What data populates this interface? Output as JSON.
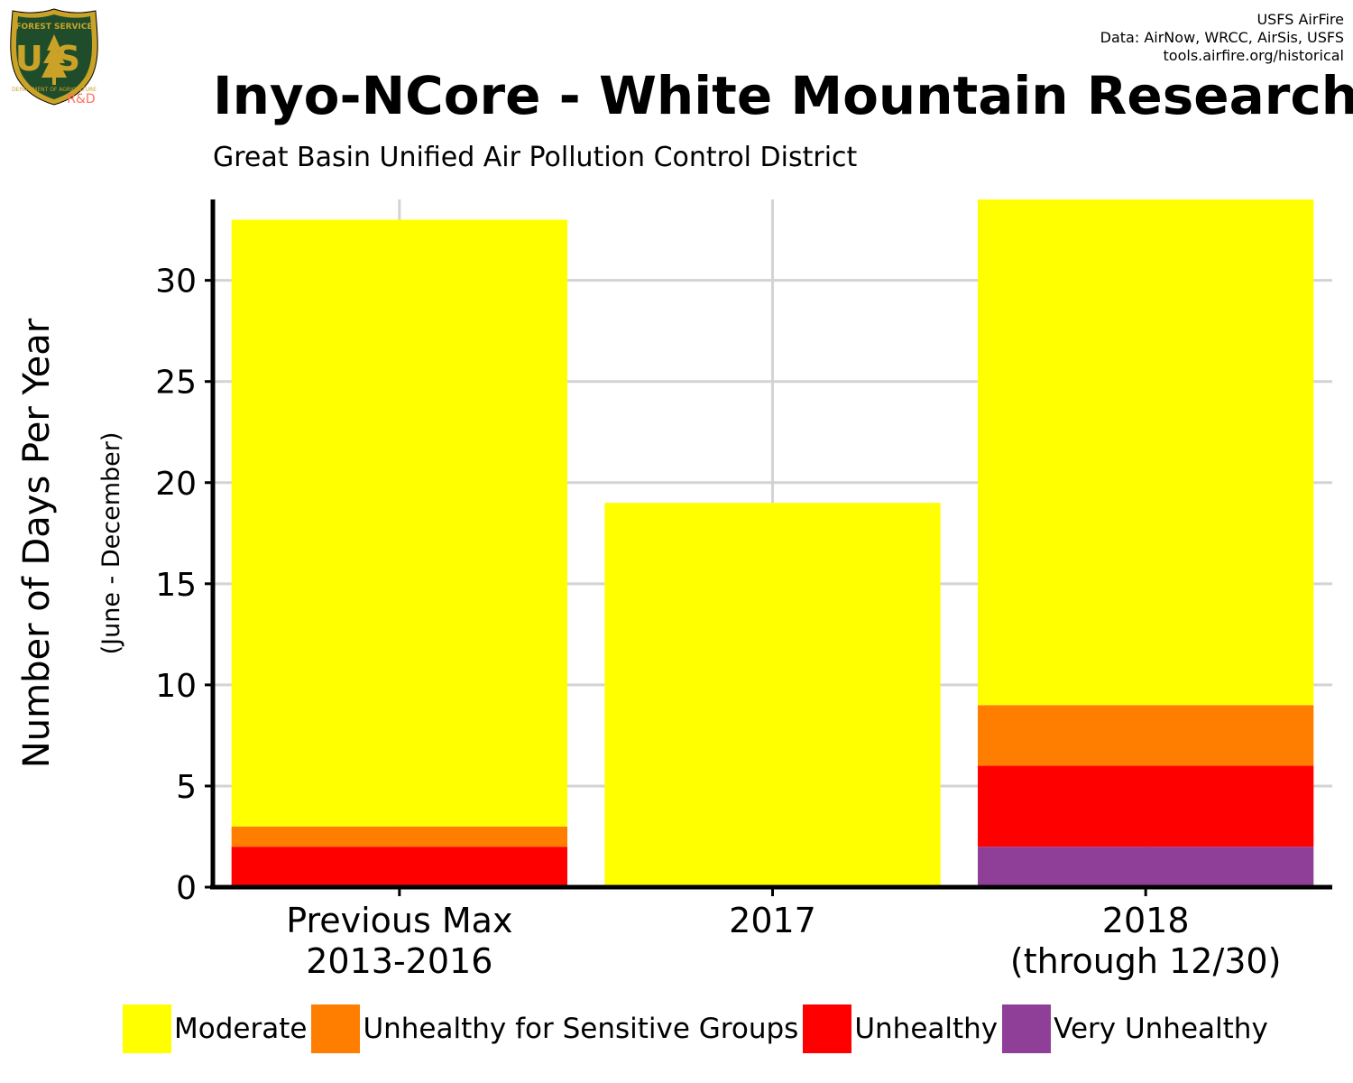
{
  "header": {
    "logo": {
      "text_top": "FOREST SERVICE",
      "text_main": "US",
      "text_bottom": "DEPARTMENT OF AGRICULTURE",
      "badge": "R&D"
    },
    "credits": [
      "USFS AirFire",
      "Data: AirNow, WRCC, AirSis, USFS",
      "tools.airfire.org/historical"
    ],
    "title": "Inyo-NCore - White Mountain Research",
    "subtitle": "Great Basin Unified Air Pollution Control District"
  },
  "chart_data": {
    "type": "bar",
    "stacked": true,
    "categories": [
      [
        "Previous Max",
        "2013-2016"
      ],
      [
        "2017"
      ],
      [
        "2018",
        "(through 12/30)"
      ]
    ],
    "series": [
      {
        "name": "Very Unhealthy",
        "color": "#8F3F97",
        "values": [
          0,
          0,
          2
        ]
      },
      {
        "name": "Unhealthy",
        "color": "#FF0000",
        "values": [
          2,
          0,
          4
        ]
      },
      {
        "name": "Unhealthy for Sensitive Groups",
        "color": "#FF7E00",
        "values": [
          1,
          0,
          3
        ]
      },
      {
        "name": "Moderate",
        "color": "#FFFF00",
        "values": [
          30,
          19,
          25
        ]
      }
    ],
    "legend_order": [
      "Moderate",
      "Unhealthy for Sensitive Groups",
      "Unhealthy",
      "Very Unhealthy"
    ],
    "ylabel": "Number of Days Per Year",
    "ylabel_sub": "(June - December)",
    "xlabel": "",
    "ylim": [
      0,
      34
    ],
    "yticks": [
      0,
      5,
      10,
      15,
      20,
      25,
      30
    ],
    "grid": true,
    "legend_position": "bottom"
  }
}
